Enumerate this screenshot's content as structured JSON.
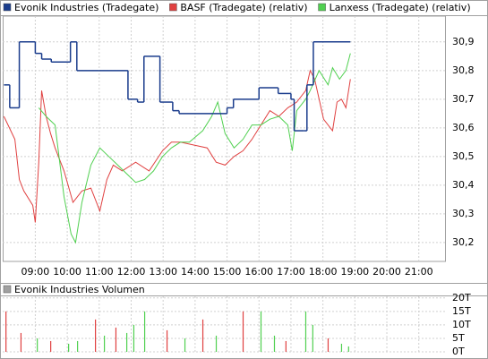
{
  "chart_data": [
    {
      "type": "line",
      "step": true,
      "xlim": [
        7.98,
        21.82
      ],
      "ylim": [
        30.134,
        30.99
      ],
      "xticks": [
        {
          "value": 9,
          "label": "09:00"
        },
        {
          "value": 10,
          "label": "10:00"
        },
        {
          "value": 11,
          "label": "11:00"
        },
        {
          "value": 12,
          "label": "12:00"
        },
        {
          "value": 13,
          "label": "13:00"
        },
        {
          "value": 14,
          "label": "14:00"
        },
        {
          "value": 15,
          "label": "15:00"
        },
        {
          "value": 16,
          "label": "16:00"
        },
        {
          "value": 17,
          "label": "17:00"
        },
        {
          "value": 18,
          "label": "18:00"
        },
        {
          "value": 19,
          "label": "19:00"
        },
        {
          "value": 20,
          "label": "20:00"
        },
        {
          "value": 21,
          "label": "21:00"
        }
      ],
      "yticks": [
        {
          "value": 30.2,
          "label": "30,2"
        },
        {
          "value": 30.3,
          "label": "30,3"
        },
        {
          "value": 30.4,
          "label": "30,4"
        },
        {
          "value": 30.5,
          "label": "30,5"
        },
        {
          "value": 30.6,
          "label": "30,6"
        },
        {
          "value": 30.7,
          "label": "30,7"
        },
        {
          "value": 30.8,
          "label": "30,8"
        },
        {
          "value": 30.9,
          "label": "30,9"
        }
      ],
      "grid": true,
      "series": [
        {
          "name": "Evonik Industries (Tradegate)",
          "color": "#1a3c8c",
          "step": true,
          "x": [
            8.02,
            8.2,
            8.5,
            9.0,
            9.2,
            9.5,
            10.1,
            10.3,
            11.0,
            11.9,
            12.2,
            12.4,
            12.9,
            13.3,
            13.5,
            15.0,
            15.2,
            16.0,
            16.6,
            17.0,
            17.1,
            17.4,
            17.5,
            17.7,
            18.86
          ],
          "values": [
            30.75,
            30.67,
            30.9,
            30.86,
            30.84,
            30.83,
            30.9,
            30.8,
            30.8,
            30.7,
            30.69,
            30.85,
            30.69,
            30.66,
            30.65,
            30.67,
            30.7,
            30.74,
            30.72,
            30.7,
            30.59,
            30.59,
            30.75,
            30.9,
            30.9
          ]
        },
        {
          "name": "BASF (Tradegate) (relativ)",
          "color": "#e04040",
          "step": false,
          "x": [
            8.02,
            8.36,
            8.5,
            8.64,
            8.92,
            9.0,
            9.11,
            9.2,
            9.34,
            9.48,
            9.62,
            9.9,
            10.18,
            10.46,
            10.74,
            11.02,
            11.24,
            11.44,
            11.72,
            12.14,
            12.56,
            12.98,
            13.26,
            13.54,
            13.96,
            14.38,
            14.66,
            14.94,
            15.22,
            15.5,
            15.78,
            16.06,
            16.34,
            16.62,
            16.9,
            17.18,
            17.46,
            17.6,
            17.74,
            18.02,
            18.3,
            18.44,
            18.58,
            18.72,
            18.86
          ],
          "values": [
            30.64,
            30.56,
            30.42,
            30.38,
            30.33,
            30.27,
            30.48,
            30.73,
            30.64,
            30.58,
            30.53,
            30.45,
            30.34,
            30.38,
            30.39,
            30.31,
            30.42,
            30.47,
            30.45,
            30.48,
            30.45,
            30.52,
            30.55,
            30.55,
            30.54,
            30.53,
            30.48,
            30.47,
            30.5,
            30.52,
            30.56,
            30.61,
            30.66,
            30.64,
            30.67,
            30.69,
            30.73,
            30.8,
            30.77,
            30.63,
            30.59,
            30.69,
            30.7,
            30.67,
            30.77
          ]
        },
        {
          "name": "Lanxess (Tradegate) (relativ)",
          "color": "#50d050",
          "step": false,
          "x": [
            9.11,
            9.34,
            9.62,
            9.9,
            10.12,
            10.26,
            10.46,
            10.74,
            11.02,
            11.3,
            11.58,
            11.86,
            12.14,
            12.42,
            12.7,
            12.98,
            13.26,
            13.54,
            13.82,
            14.24,
            14.52,
            14.71,
            14.94,
            15.22,
            15.5,
            15.78,
            16.06,
            16.34,
            16.62,
            16.9,
            17.04,
            17.18,
            17.46,
            17.6,
            17.88,
            18.16,
            18.3,
            18.52,
            18.72,
            18.86
          ],
          "values": [
            30.67,
            30.64,
            30.61,
            30.36,
            30.23,
            30.2,
            30.34,
            30.47,
            30.53,
            30.5,
            30.47,
            30.44,
            30.41,
            30.42,
            30.45,
            30.5,
            30.53,
            30.55,
            30.55,
            30.59,
            30.64,
            30.69,
            30.58,
            30.53,
            30.56,
            30.61,
            30.61,
            30.63,
            30.64,
            30.61,
            30.52,
            30.66,
            30.7,
            30.73,
            30.8,
            30.75,
            30.81,
            30.77,
            30.8,
            30.86
          ]
        }
      ]
    },
    {
      "type": "bar",
      "title": "Evonik Industries Volumen",
      "legend_color": "#a0a0a0",
      "xlim": [
        7.98,
        21.82
      ],
      "ylim": [
        0,
        20.6
      ],
      "yticks": [
        {
          "value": 0,
          "label": "0T"
        },
        {
          "value": 5,
          "label": "5T"
        },
        {
          "value": 10,
          "label": "10T"
        },
        {
          "value": 15,
          "label": "15T"
        },
        {
          "value": 20,
          "label": "20T"
        }
      ],
      "x": [
        8.08,
        8.55,
        9.06,
        9.48,
        10.04,
        10.32,
        10.88,
        11.16,
        11.52,
        11.86,
        12.08,
        12.42,
        13.12,
        13.68,
        14.24,
        14.66,
        15.5,
        16.06,
        16.48,
        16.84,
        17.46,
        17.68,
        18.16,
        18.58,
        18.8
      ],
      "values": [
        15,
        7,
        5,
        4,
        3,
        4,
        12,
        6,
        9,
        7,
        10,
        15,
        8,
        5,
        12,
        6,
        15,
        15,
        6,
        4,
        15,
        10,
        5,
        3,
        2
      ],
      "colors": [
        "#e04040",
        "#e04040",
        "#50d050",
        "#e04040",
        "#50d050",
        "#50d050",
        "#e04040",
        "#50d050",
        "#e04040",
        "#50d050",
        "#50d050",
        "#50d050",
        "#e04040",
        "#50d050",
        "#e04040",
        "#50d050",
        "#e04040",
        "#50d050",
        "#50d050",
        "#e04040",
        "#50d050",
        "#50d050",
        "#e04040",
        "#50d050",
        "#50d050"
      ]
    }
  ]
}
